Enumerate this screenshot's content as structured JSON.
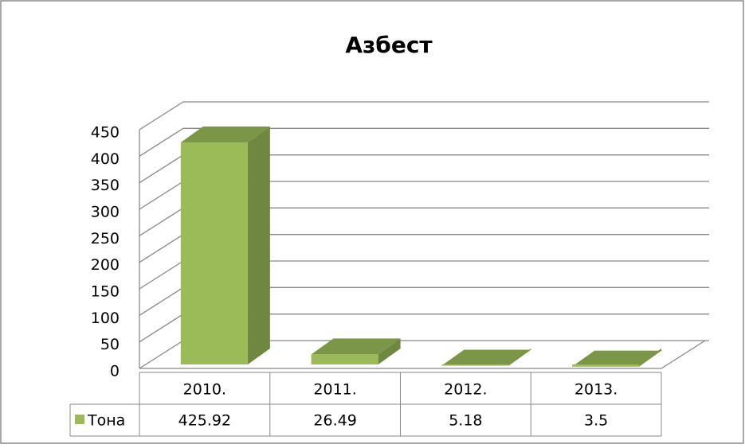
{
  "chart_data": {
    "type": "bar3d",
    "title": "Азбест",
    "categories": [
      "2010.",
      "2011.",
      "2012.",
      "2013."
    ],
    "series": [
      {
        "name": "Тона",
        "color": "#9bbb59",
        "values": [
          425.92,
          26.49,
          5.18,
          3.5
        ]
      }
    ],
    "ylim": [
      0,
      450
    ],
    "yticks": [
      0,
      50,
      100,
      150,
      200,
      250,
      300,
      350,
      400,
      450
    ],
    "grid": true
  }
}
